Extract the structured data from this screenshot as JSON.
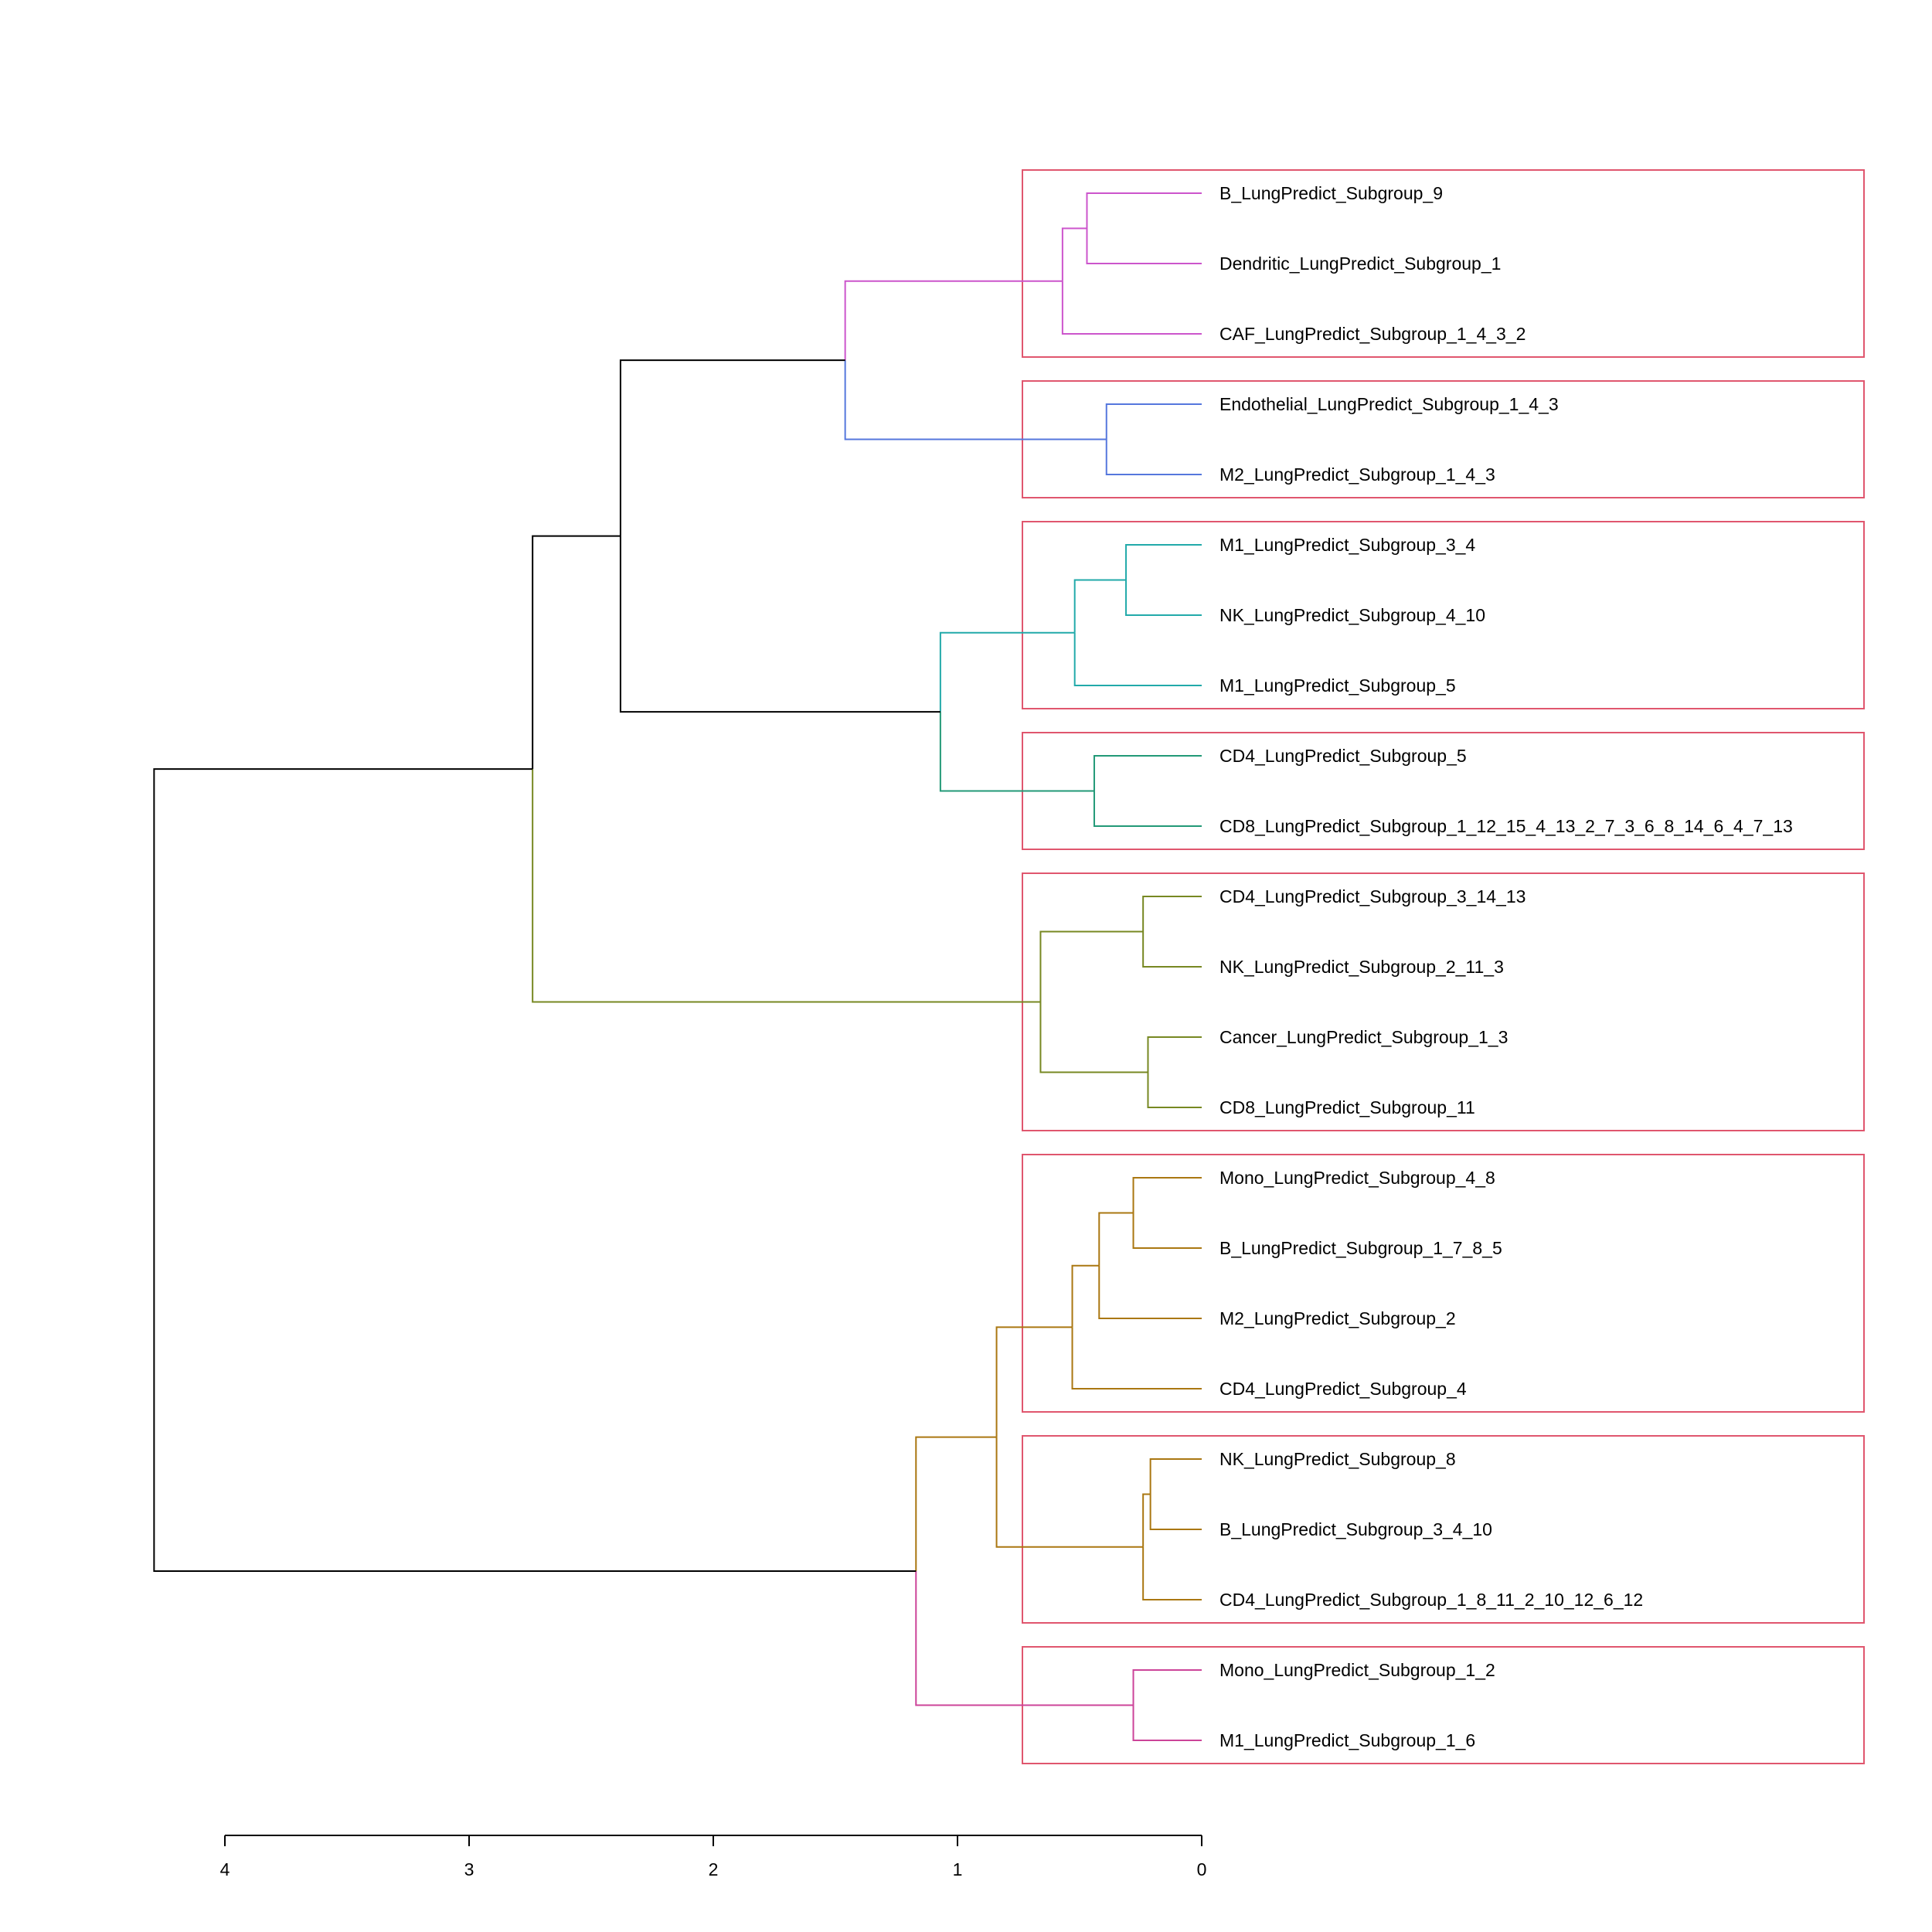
{
  "axis": {
    "ticks": [
      4,
      3,
      2,
      1,
      0
    ],
    "min": 0,
    "max": 4
  },
  "colors": {
    "root": "#000000",
    "box": "#E0566E",
    "magenta": "#CC55CC",
    "blue": "#5577DD",
    "teal": "#22AAAA",
    "green": "#229977",
    "olive": "#778822",
    "gold": "#AA7711",
    "pink": "#CC4499"
  },
  "leaves": [
    "B_LungPredict_Subgroup_9",
    "Dendritic_LungPredict_Subgroup_1",
    "CAF_LungPredict_Subgroup_1_4_3_2",
    "Endothelial_LungPredict_Subgroup_1_4_3",
    "M2_LungPredict_Subgroup_1_4_3",
    "M1_LungPredict_Subgroup_3_4",
    "NK_LungPredict_Subgroup_4_10",
    "M1_LungPredict_Subgroup_5",
    "CD4_LungPredict_Subgroup_5",
    "CD8_LungPredict_Subgroup_1_12_15_4_13_2_7_3_6_8_14_6_4_7_13",
    "CD4_LungPredict_Subgroup_3_14_13",
    "NK_LungPredict_Subgroup_2_11_3",
    "Cancer_LungPredict_Subgroup_1_3",
    "CD8_LungPredict_Subgroup_11",
    "Mono_LungPredict_Subgroup_4_8",
    "B_LungPredict_Subgroup_1_7_8_5",
    "M2_LungPredict_Subgroup_2",
    "CD4_LungPredict_Subgroup_4",
    "NK_LungPredict_Subgroup_8",
    "B_LungPredict_Subgroup_3_4_10",
    "CD4_LungPredict_Subgroup_1_8_11_2_10_12_6_12",
    "Mono_LungPredict_Subgroup_1_2",
    "M1_LungPredict_Subgroup_1_6"
  ],
  "merges": [
    {
      "id": "m1",
      "a": 0,
      "b": 1,
      "height": 0.47,
      "color": "magenta"
    },
    {
      "id": "m2",
      "a": "m1",
      "b": 2,
      "height": 0.57,
      "color": "magenta"
    },
    {
      "id": "m3",
      "a": 3,
      "b": 4,
      "height": 0.39,
      "color": "blue"
    },
    {
      "id": "m4",
      "a": "m2",
      "b": "m3",
      "height": 1.46,
      "color": "blue"
    },
    {
      "id": "m5",
      "a": 5,
      "b": 6,
      "height": 0.31,
      "color": "teal"
    },
    {
      "id": "m6",
      "a": "m5",
      "b": 7,
      "height": 0.52,
      "color": "teal"
    },
    {
      "id": "m7",
      "a": 8,
      "b": 9,
      "height": 0.44,
      "color": "green"
    },
    {
      "id": "m8",
      "a": "m6",
      "b": "m7",
      "height": 1.07,
      "color": "teal"
    },
    {
      "id": "m9",
      "a": "m4",
      "b": "m8",
      "height": 2.38,
      "color": "root"
    },
    {
      "id": "m10",
      "a": 10,
      "b": 11,
      "height": 0.24,
      "color": "olive"
    },
    {
      "id": "m11",
      "a": 12,
      "b": 13,
      "height": 0.22,
      "color": "olive"
    },
    {
      "id": "m12",
      "a": "m10",
      "b": "m11",
      "height": 0.66,
      "color": "olive"
    },
    {
      "id": "m13",
      "a": "m9",
      "b": "m12",
      "height": 2.74,
      "color": "root"
    },
    {
      "id": "m14",
      "a": 14,
      "b": 15,
      "height": 0.28,
      "color": "gold"
    },
    {
      "id": "m15",
      "a": "m14",
      "b": 16,
      "height": 0.42,
      "color": "gold"
    },
    {
      "id": "m16",
      "a": "m15",
      "b": 17,
      "height": 0.53,
      "color": "gold"
    },
    {
      "id": "m17",
      "a": 18,
      "b": 19,
      "height": 0.21,
      "color": "gold"
    },
    {
      "id": "m18",
      "a": "m17",
      "b": 20,
      "height": 0.24,
      "color": "gold"
    },
    {
      "id": "m19",
      "a": "m16",
      "b": "m18",
      "height": 0.84,
      "color": "gold"
    },
    {
      "id": "m20",
      "a": 21,
      "b": 22,
      "height": 0.28,
      "color": "pink"
    },
    {
      "id": "m21",
      "a": "m19",
      "b": "m20",
      "height": 1.17,
      "color": "gold"
    },
    {
      "id": "m22",
      "a": "m13",
      "b": "m21",
      "height": 4.29,
      "color": "root"
    }
  ],
  "merge_branch_colors": {
    "m4": [
      "magenta",
      "blue"
    ],
    "m8": [
      "teal",
      "green"
    ],
    "m9": [
      "root",
      "root"
    ],
    "m13": [
      "root",
      "olive"
    ],
    "m21": [
      "gold",
      "pink"
    ],
    "m22": [
      "root",
      "root"
    ]
  },
  "clusters": [
    {
      "first": 0,
      "last": 2
    },
    {
      "first": 3,
      "last": 4
    },
    {
      "first": 5,
      "last": 7
    },
    {
      "first": 8,
      "last": 9
    },
    {
      "first": 10,
      "last": 13
    },
    {
      "first": 14,
      "last": 17
    },
    {
      "first": 18,
      "last": 20
    },
    {
      "first": 21,
      "last": 22
    }
  ]
}
